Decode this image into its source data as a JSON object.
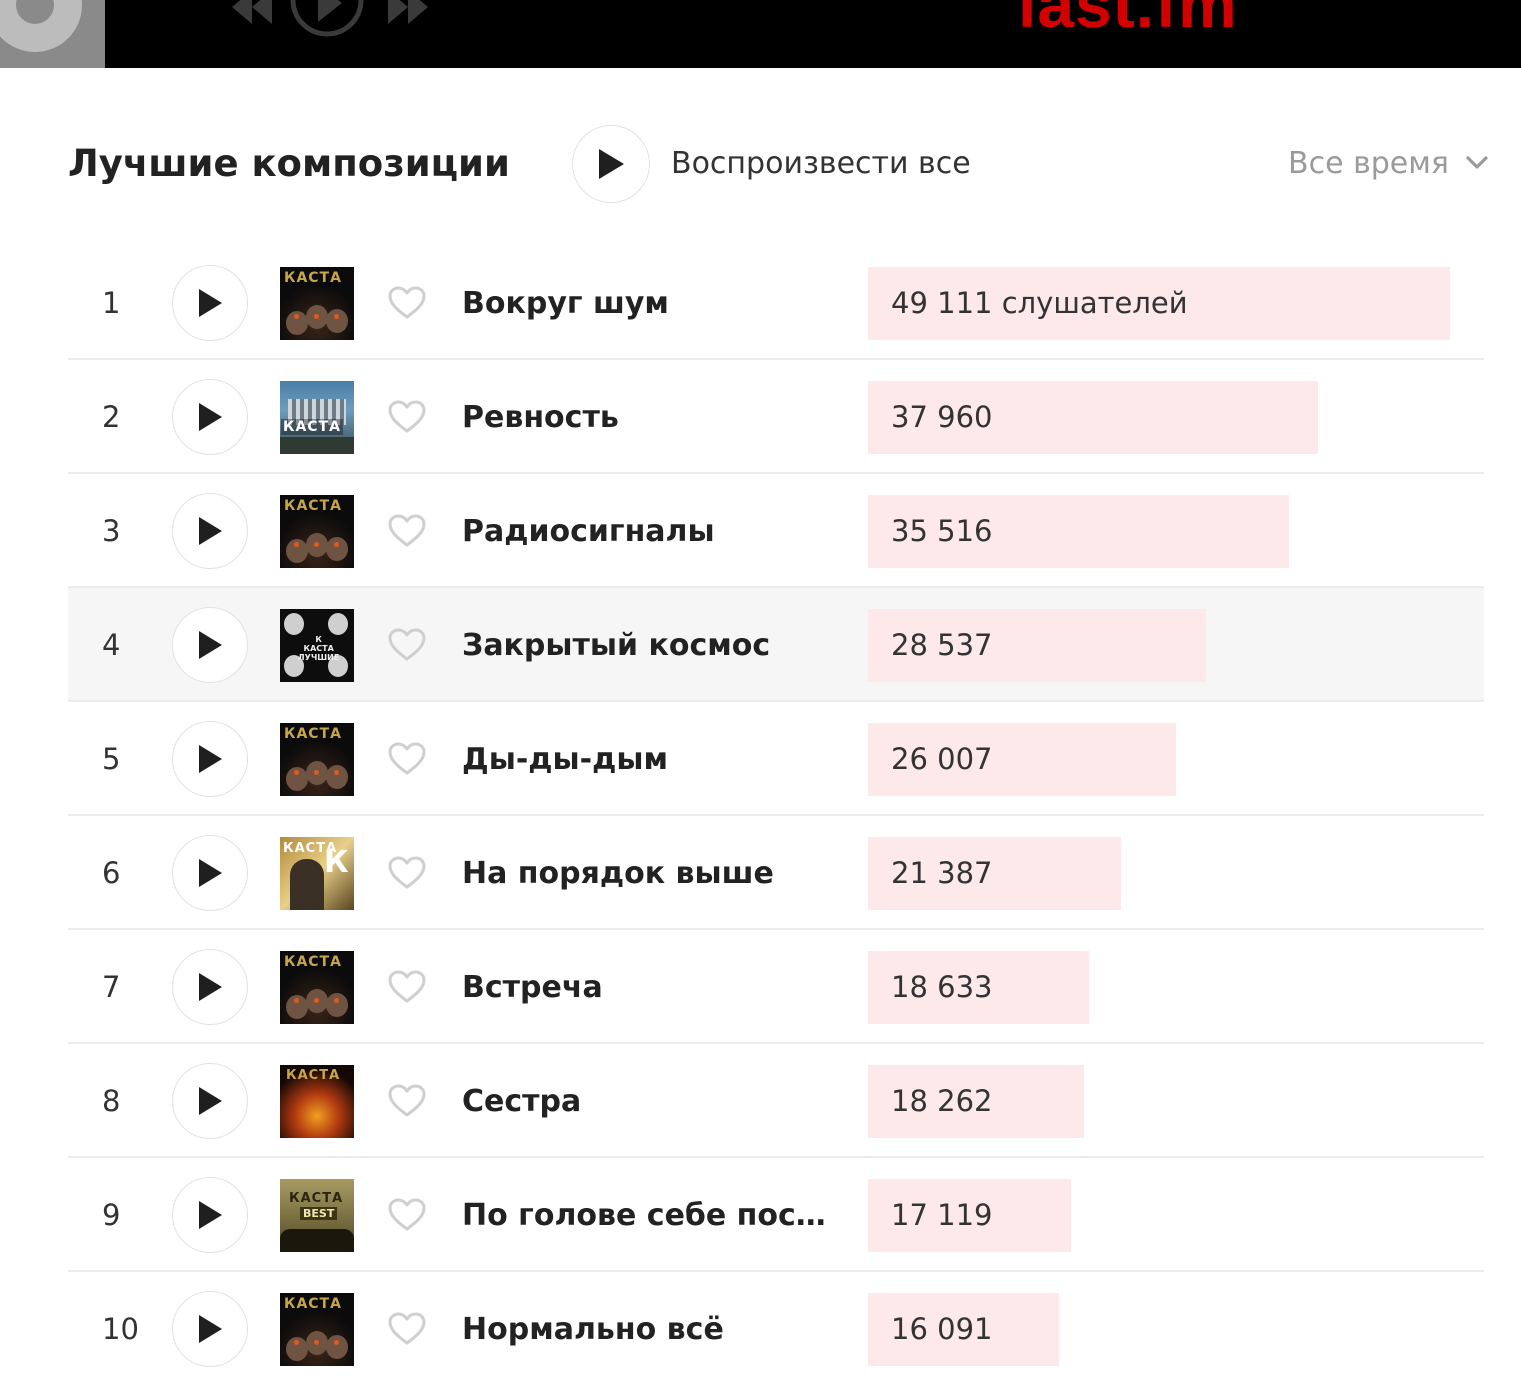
{
  "header": {
    "logo_text": "last.fm"
  },
  "section": {
    "title": "Лучшие композиции",
    "play_all_label": "Воспроизвести все",
    "time_filter": "Все время"
  },
  "colors": {
    "bar": "#fde8ea",
    "logo": "#d30000"
  },
  "tracks": [
    {
      "rank": "1",
      "title": "Вокруг шум",
      "count": "49 111 слушателей",
      "listeners": 49111,
      "cover": "kasta-a"
    },
    {
      "rank": "2",
      "title": "Ревность",
      "count": "37 960",
      "listeners": 37960,
      "cover": "kasta-b"
    },
    {
      "rank": "3",
      "title": "Радиосигналы",
      "count": "35 516",
      "listeners": 35516,
      "cover": "kasta-a"
    },
    {
      "rank": "4",
      "title": "Закрытый космос",
      "count": "28 537",
      "listeners": 28537,
      "cover": "kasta-c"
    },
    {
      "rank": "5",
      "title": "Ды-ды-дым",
      "count": "26 007",
      "listeners": 26007,
      "cover": "kasta-a"
    },
    {
      "rank": "6",
      "title": "На порядок выше",
      "count": "21 387",
      "listeners": 21387,
      "cover": "kasta-d"
    },
    {
      "rank": "7",
      "title": "Встреча",
      "count": "18 633",
      "listeners": 18633,
      "cover": "kasta-a"
    },
    {
      "rank": "8",
      "title": "Сестра",
      "count": "18 262",
      "listeners": 18262,
      "cover": "kasta-e"
    },
    {
      "rank": "9",
      "title": "По голове себе посту...",
      "count": "17 119",
      "listeners": 17119,
      "cover": "kasta-f"
    },
    {
      "rank": "10",
      "title": "Нормально всё",
      "count": "16 091",
      "listeners": 16091,
      "cover": "kasta-a"
    }
  ],
  "icons": {
    "play": "play-icon",
    "heart": "heart-icon",
    "chevron": "chevron-down-icon"
  }
}
